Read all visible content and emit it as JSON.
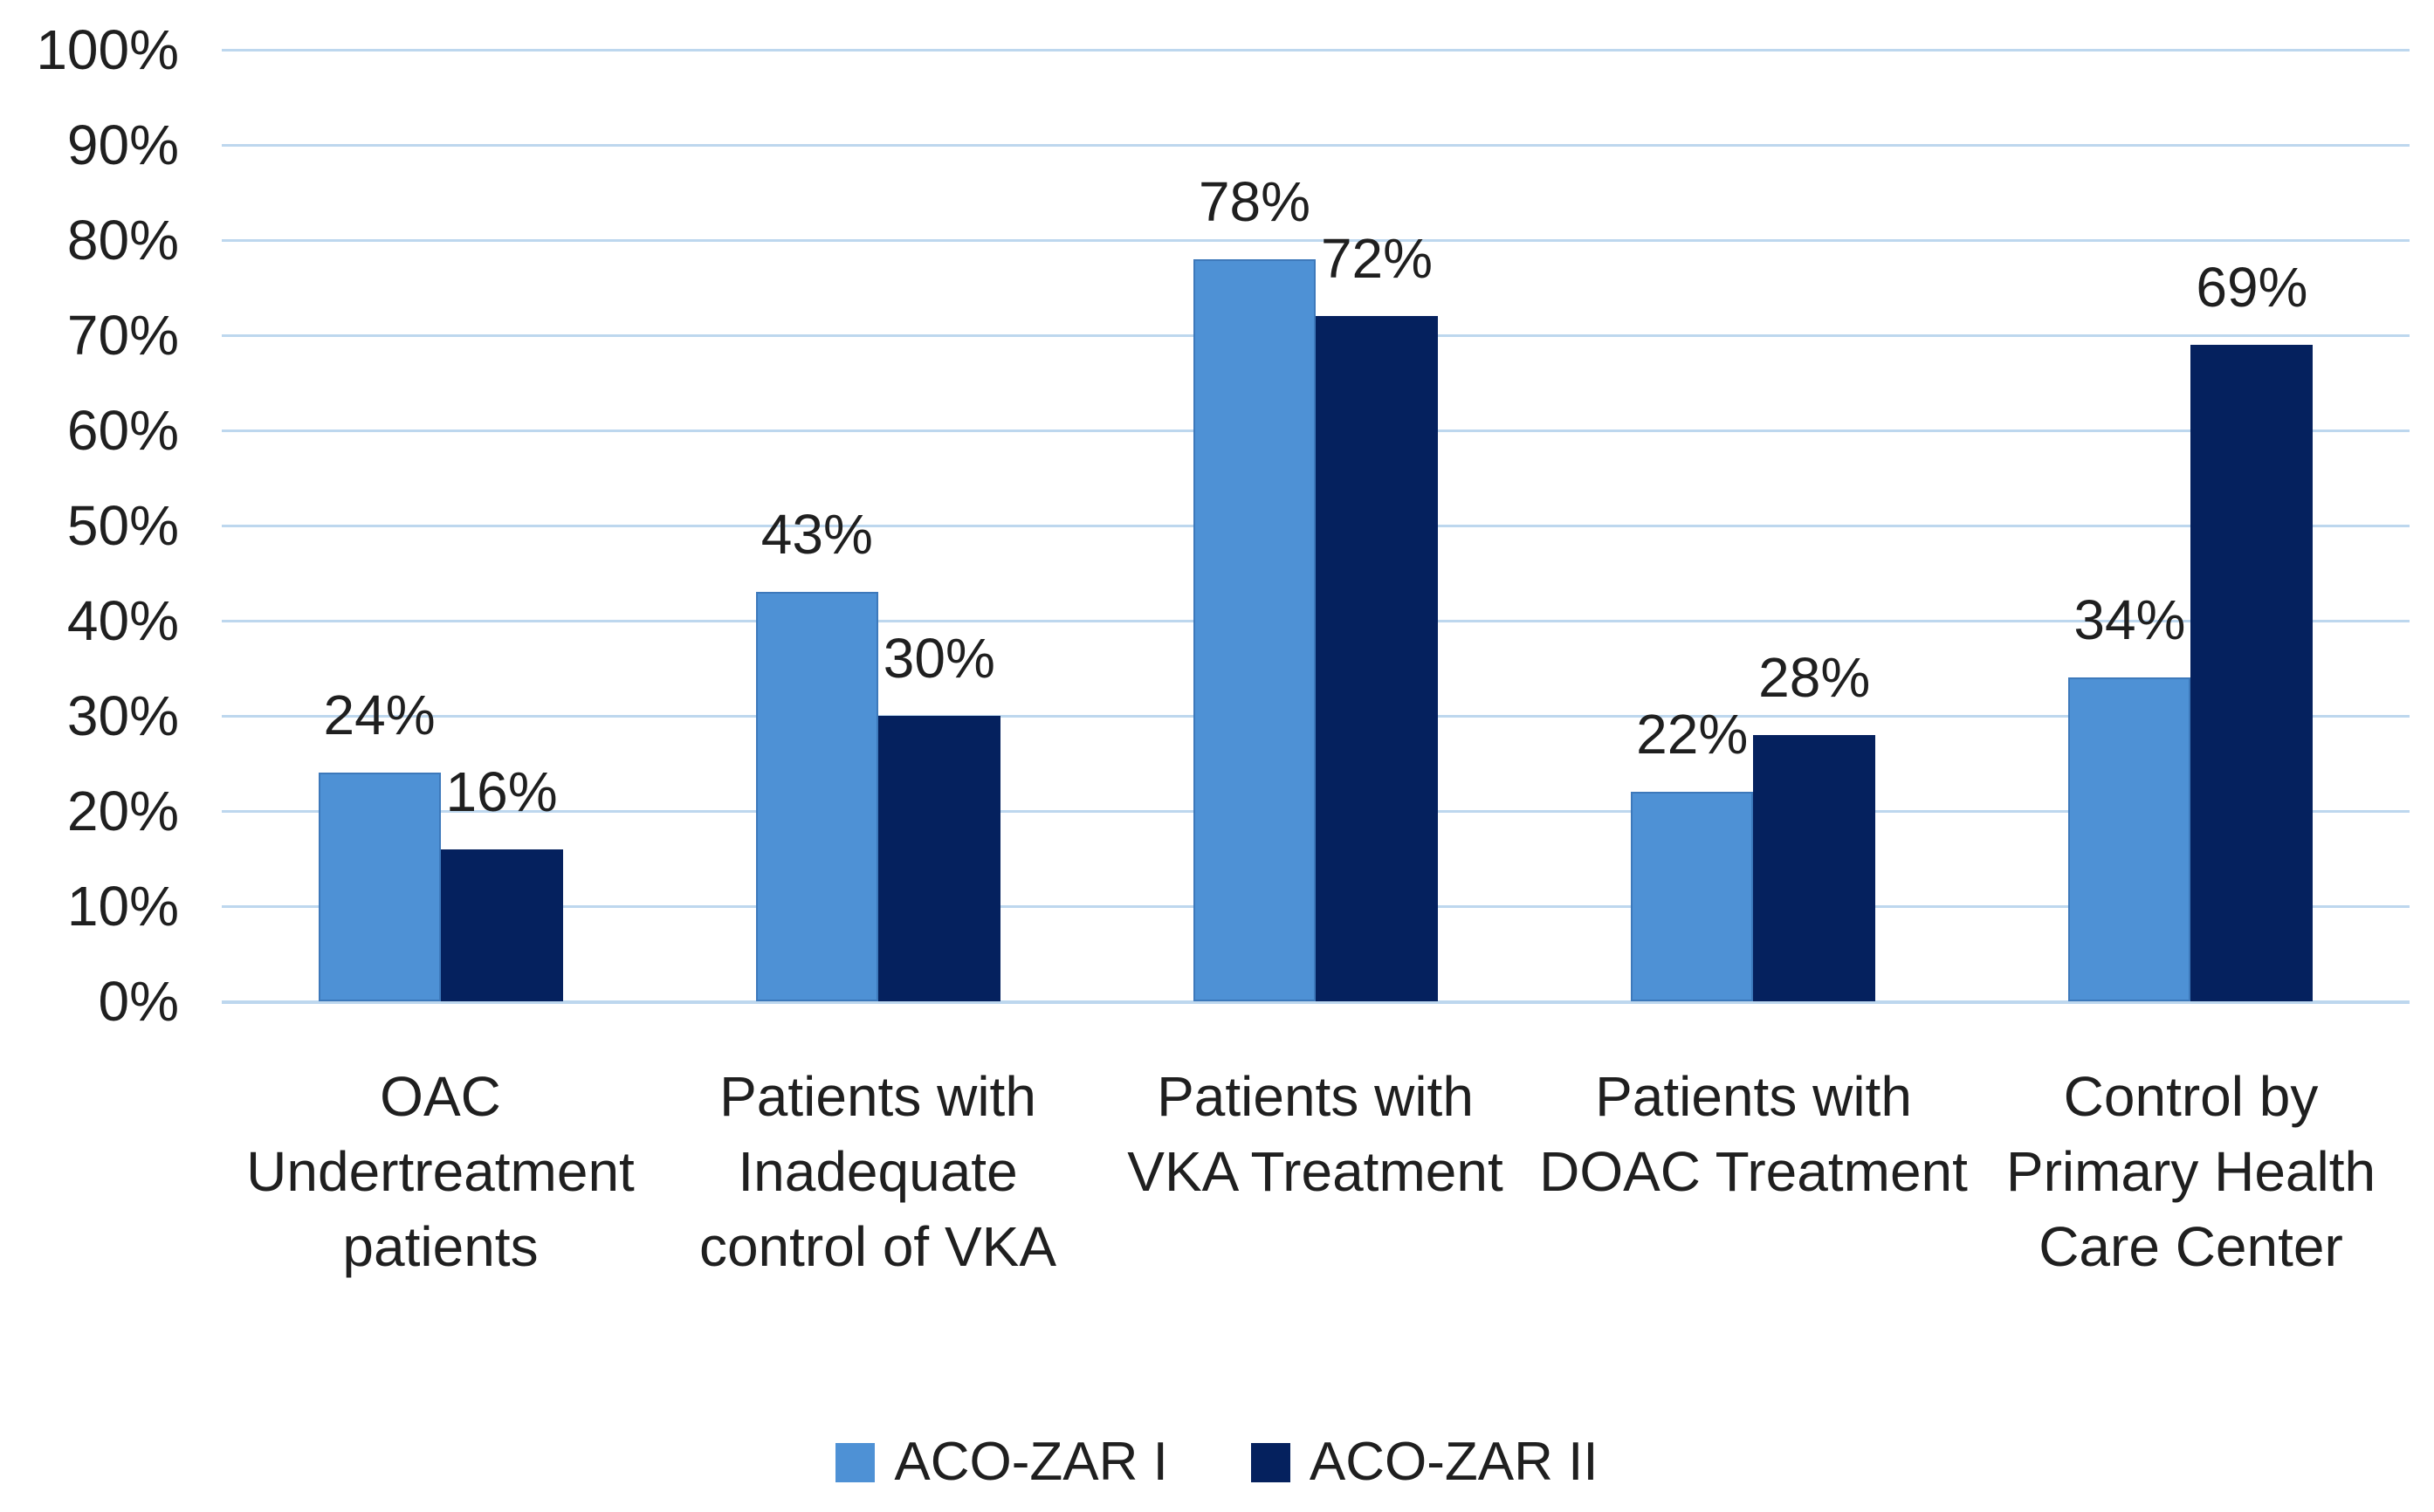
{
  "chart_data": {
    "type": "bar",
    "title": "",
    "xlabel": "",
    "ylabel": "",
    "categories": [
      "OAC\nUndertreatment\npatients",
      "Patients with\nInadequate\ncontrol of VKA",
      "Patients with\nVKA Treatment",
      "Patients with\nDOAC Treatment",
      "Control by\nPrimary Health\nCare Center"
    ],
    "series": [
      {
        "name": "ACO-ZAR I",
        "color": "#4E91D5",
        "values": [
          24,
          43,
          78,
          22,
          34
        ],
        "labels": [
          "24%",
          "43%",
          "78%",
          "22%",
          "34%"
        ]
      },
      {
        "name": "ACO-ZAR II",
        "color": "#05215E",
        "values": [
          16,
          30,
          72,
          28,
          69
        ],
        "labels": [
          "16%",
          "30%",
          "72%",
          "28%",
          "69%"
        ]
      }
    ],
    "y_axis": {
      "min": 0,
      "max": 100,
      "step": 10,
      "tick_labels": [
        "0%",
        "10%",
        "20%",
        "30%",
        "40%",
        "50%",
        "60%",
        "70%",
        "80%",
        "90%",
        "100%"
      ]
    },
    "ylim": [
      0,
      100
    ],
    "grid": true,
    "gridline_color": "#BDD7EE",
    "legend_position": "bottom",
    "background_color": "#FFFFFF",
    "text_color": "#1F1F1F"
  }
}
